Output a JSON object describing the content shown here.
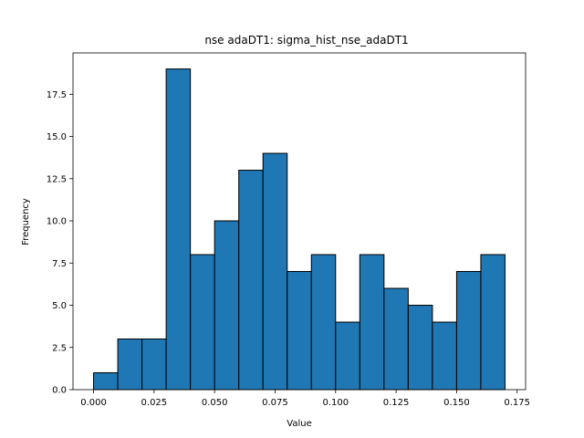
{
  "chart_data": {
    "type": "bar",
    "title": "nse adaDT1: sigma_hist_nse_adaDT1",
    "xlabel": "Value",
    "ylabel": "Frequency",
    "bin_edges": [
      0.0,
      0.01,
      0.02,
      0.03,
      0.04,
      0.05,
      0.06,
      0.07,
      0.08,
      0.09,
      0.1,
      0.11,
      0.12,
      0.13,
      0.14,
      0.15,
      0.16,
      0.17
    ],
    "values": [
      1,
      3,
      3,
      19,
      8,
      10,
      13,
      14,
      7,
      8,
      4,
      8,
      6,
      5,
      4,
      7,
      8
    ],
    "xlim": [
      -0.0085,
      0.1785
    ],
    "ylim": [
      0,
      19.95
    ],
    "xticks": [
      {
        "value": 0.0,
        "label": "0.000"
      },
      {
        "value": 0.025,
        "label": "0.025"
      },
      {
        "value": 0.05,
        "label": "0.050"
      },
      {
        "value": 0.075,
        "label": "0.075"
      },
      {
        "value": 0.1,
        "label": "0.100"
      },
      {
        "value": 0.125,
        "label": "0.125"
      },
      {
        "value": 0.15,
        "label": "0.150"
      },
      {
        "value": 0.175,
        "label": "0.175"
      }
    ],
    "yticks": [
      {
        "value": 0.0,
        "label": "0.0"
      },
      {
        "value": 2.5,
        "label": "2.5"
      },
      {
        "value": 5.0,
        "label": "5.0"
      },
      {
        "value": 7.5,
        "label": "7.5"
      },
      {
        "value": 10.0,
        "label": "10.0"
      },
      {
        "value": 12.5,
        "label": "12.5"
      },
      {
        "value": 15.0,
        "label": "15.0"
      },
      {
        "value": 17.5,
        "label": "17.5"
      }
    ],
    "bar_color": "#1f77b4",
    "edge_color": "#000000",
    "grid": false,
    "legend": "none"
  }
}
